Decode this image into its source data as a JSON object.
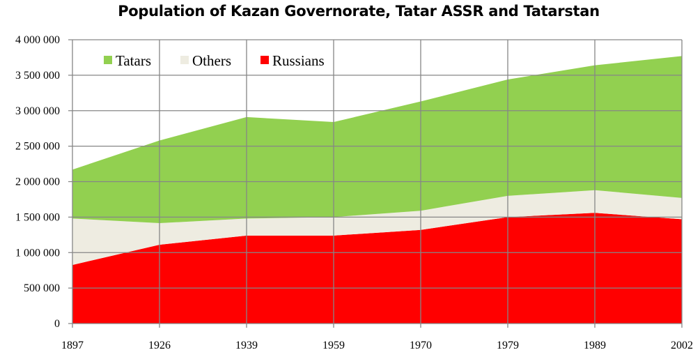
{
  "chart_data": {
    "type": "area",
    "stacked": true,
    "title": "Population of Kazan Governorate, Tatar ASSR and Tatarstan",
    "xlabel": "",
    "ylabel": "",
    "categories": [
      "1897",
      "1926",
      "1939",
      "1959",
      "1970",
      "1979",
      "1989",
      "2002"
    ],
    "ylim": [
      0,
      4000000
    ],
    "yticks": [
      {
        "value": 0,
        "label": "0"
      },
      {
        "value": 500000,
        "label": "500 000"
      },
      {
        "value": 1000000,
        "label": "1 000 000"
      },
      {
        "value": 1500000,
        "label": "1 500 000"
      },
      {
        "value": 2000000,
        "label": "2 000 000"
      },
      {
        "value": 2500000,
        "label": "2 500 000"
      },
      {
        "value": 3000000,
        "label": "3 000 000"
      },
      {
        "value": 3500000,
        "label": "3 500 000"
      },
      {
        "value": 4000000,
        "label": "4 000 000"
      }
    ],
    "grid": true,
    "legend_position": "top-left, inside",
    "series": [
      {
        "name": "Russians",
        "color": "#ff0000",
        "values": [
          826000,
          1110000,
          1240000,
          1240000,
          1320000,
          1500000,
          1560000,
          1470000
        ]
      },
      {
        "name": "Others",
        "color": "#eeece1",
        "values": [
          654000,
          305000,
          240000,
          260000,
          270000,
          300000,
          320000,
          300000
        ]
      },
      {
        "name": "Tatars",
        "color": "#92d050",
        "values": [
          690000,
          1165000,
          1430000,
          1340000,
          1540000,
          1640000,
          1760000,
          2000000
        ]
      }
    ],
    "legend_order": [
      "Tatars",
      "Others",
      "Russians"
    ]
  }
}
